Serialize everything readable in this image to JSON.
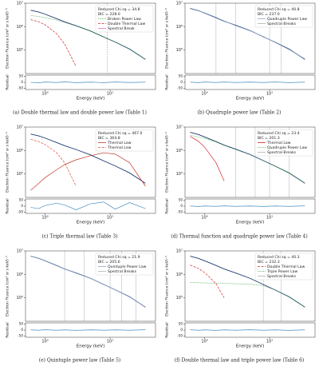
{
  "chart_data": [
    {
      "type": "line",
      "caption": "(a) Double thermal law and double power law (Table 1)",
      "annotations": [
        "Reduced Chi sq = 34.8",
        "BIC = 228.0"
      ],
      "xlabel": "Energy (keV)",
      "ylabel": "Electron Fluence (cm² sr s keV)⁻¹",
      "residual_label": "Residual",
      "log_x": true,
      "log_y": true,
      "x": [
        0.6,
        0.8,
        1,
        1.5,
        2,
        3,
        5,
        8,
        12,
        20,
        35
      ],
      "xlim": [
        0.5,
        50
      ],
      "xticks": [
        {
          "value": 1,
          "label": "10⁰"
        },
        {
          "value": 10,
          "label": "10¹"
        }
      ],
      "ylim": [
        10000,
        10000000
      ],
      "yticks": [
        {
          "value": 100000,
          "label": "10⁵"
        },
        {
          "value": 1000000,
          "label": "10⁶"
        },
        {
          "value": 10000000,
          "label": "10⁷"
        }
      ],
      "series": [
        {
          "color": "#1f3b73",
          "dash": "solid",
          "values": [
            5000000,
            4200000,
            3400000,
            2200000,
            1600000,
            1100000,
            650000,
            360000,
            220000,
            110000,
            40000
          ]
        },
        {
          "name": "Broken Power Law",
          "color": "#2ca02c",
          "dash": "dotted",
          "values": [
            3000000,
            2700000,
            2400000,
            1900000,
            1500000,
            1050000,
            650000,
            360000,
            220000,
            110000,
            40000
          ]
        },
        {
          "name": "Double Thermal Law",
          "color": "#d62728",
          "dash": "dashed",
          "values": [
            2000000,
            1600000,
            1200000,
            500000,
            180000,
            20000,
            null,
            null,
            null,
            null,
            null
          ]
        }
      ],
      "breaks": {
        "name": "Spectral Break",
        "color": "#e377c2",
        "values": [
          9
        ]
      },
      "residuals": {
        "color": "#1f77b4",
        "values": [
          0,
          -3,
          2,
          -1,
          3,
          -2,
          1,
          -2,
          2,
          -1,
          1
        ]
      },
      "residual_ylim": [
        -60,
        60
      ],
      "residual_yticks": [
        -50,
        0,
        50
      ]
    },
    {
      "type": "line",
      "caption": "(b) Quadruple power law (Table 2)",
      "annotations": [
        "Reduced Chi sq = 40.8",
        "BIC = 237.0"
      ],
      "xlabel": "Energy (keV)",
      "ylabel": "Electron Fluence (cm² sr s keV)⁻¹",
      "residual_label": "Residual",
      "log_x": true,
      "log_y": true,
      "x": [
        0.6,
        0.8,
        1,
        1.5,
        2,
        3,
        5,
        8,
        12,
        20,
        35
      ],
      "xlim": [
        0.5,
        50
      ],
      "xticks": [
        {
          "value": 1,
          "label": "10⁰"
        },
        {
          "value": 10,
          "label": "10¹"
        }
      ],
      "ylim": [
        10000,
        10000000
      ],
      "yticks": [
        {
          "value": 100000,
          "label": "10⁵"
        },
        {
          "value": 1000000,
          "label": "10⁶"
        },
        {
          "value": 10000000,
          "label": "10⁷"
        }
      ],
      "series": [
        {
          "color": "#1f3b73",
          "dash": "solid",
          "values": [
            6000000,
            4800000,
            3800000,
            2400000,
            1700000,
            1150000,
            680000,
            370000,
            220000,
            110000,
            40000
          ]
        },
        {
          "name": "Quadruple Power Law",
          "color": "#8fa6c9",
          "dash": "solid",
          "values": [
            5800000,
            4700000,
            3900000,
            2500000,
            1750000,
            1100000,
            660000,
            380000,
            215000,
            105000,
            42000
          ]
        }
      ],
      "breaks": {
        "name": "Spectral Breaks",
        "color": "#b0b0b0",
        "values": [
          1.5,
          3,
          10,
          15
        ]
      },
      "residuals": {
        "color": "#1f77b4",
        "values": [
          1,
          -2,
          2,
          -1,
          2,
          -1,
          1,
          -1,
          2,
          -2,
          1
        ]
      },
      "residual_ylim": [
        -60,
        60
      ],
      "residual_yticks": [
        -50,
        0,
        50
      ]
    },
    {
      "type": "line",
      "caption": "(c) Triple thermal law (Table 3)",
      "annotations": [
        "Reduced Chi sq = 467.0",
        "BIC = 364.8"
      ],
      "xlabel": "Energy (keV)",
      "ylabel": "Electron Fluence (cm² sr s keV)⁻¹",
      "residual_label": "Residual",
      "log_x": true,
      "log_y": true,
      "x": [
        0.6,
        0.8,
        1,
        1.5,
        2,
        3,
        5,
        8,
        12,
        20,
        35
      ],
      "xlim": [
        0.5,
        50
      ],
      "xticks": [
        {
          "value": 1,
          "label": "10⁰"
        },
        {
          "value": 10,
          "label": "10¹"
        }
      ],
      "ylim": [
        10000,
        10000000
      ],
      "yticks": [
        {
          "value": 100000,
          "label": "10⁵"
        },
        {
          "value": 1000000,
          "label": "10⁶"
        },
        {
          "value": 10000000,
          "label": "10⁷"
        }
      ],
      "series": [
        {
          "color": "#1f3b73",
          "dash": "solid",
          "values": [
            5000000,
            4200000,
            3400000,
            2200000,
            1600000,
            1100000,
            650000,
            360000,
            220000,
            110000,
            40000
          ]
        },
        {
          "name": "Thermal Law",
          "color": "#c0392b",
          "dash": "solid",
          "values": [
            20000,
            40000,
            70000,
            150000,
            250000,
            400000,
            600000,
            800000,
            700000,
            300000,
            30000
          ]
        },
        {
          "name": "Thermal Law",
          "color": "#e74c3c",
          "dash": "dashed",
          "values": [
            3000000,
            2400000,
            1800000,
            800000,
            300000,
            30000,
            null,
            null,
            null,
            null,
            null
          ]
        }
      ],
      "residuals": {
        "color": "#1f77b4",
        "values": [
          -10,
          -20,
          5,
          25,
          10,
          -30,
          20,
          35,
          -25,
          30,
          -20
        ]
      },
      "residual_ylim": [
        -60,
        60
      ],
      "residual_yticks": [
        -50,
        0,
        50
      ]
    },
    {
      "type": "line",
      "caption": "(d) Thermal function and quadruple power law (Table 4)",
      "annotations": [
        "Reduced Chi sq = 23.4",
        "BIC = 201.3"
      ],
      "xlabel": "Energy (keV)",
      "ylabel": "Electron Fluence (cm² sr s keV)⁻¹",
      "residual_label": "Residual",
      "log_x": true,
      "log_y": true,
      "x": [
        0.6,
        0.8,
        1,
        1.5,
        2,
        3,
        5,
        8,
        12,
        20,
        35
      ],
      "xlim": [
        0.5,
        50
      ],
      "xticks": [
        {
          "value": 1,
          "label": "10⁰"
        },
        {
          "value": 10,
          "label": "10¹"
        }
      ],
      "ylim": [
        10000,
        10000000
      ],
      "yticks": [
        {
          "value": 100000,
          "label": "10⁵"
        },
        {
          "value": 1000000,
          "label": "10⁶"
        },
        {
          "value": 10000000,
          "label": "10⁷"
        }
      ],
      "series": [
        {
          "color": "#1f3b73",
          "dash": "solid",
          "values": [
            6000000,
            4800000,
            3800000,
            2400000,
            1700000,
            1150000,
            680000,
            370000,
            220000,
            110000,
            40000
          ]
        },
        {
          "name": "Thermal Law",
          "color": "#d62728",
          "dash": "solid",
          "values": [
            4000000,
            2500000,
            1400000,
            300000,
            50000,
            null,
            null,
            null,
            null,
            null,
            null
          ]
        },
        {
          "name": "Quadruple Power Law",
          "color": "#2ca02c",
          "dash": "dotted",
          "values": [
            4500000,
            3800000,
            3300000,
            2300000,
            1650000,
            1100000,
            660000,
            370000,
            220000,
            110000,
            40000
          ]
        }
      ],
      "breaks": {
        "name": "Spectral Breaks",
        "color": "#b0b0b0",
        "values": [
          3,
          6,
          10,
          20
        ]
      },
      "residuals": {
        "color": "#1f77b4",
        "values": [
          1,
          -2,
          1,
          -1,
          2,
          -1,
          1,
          -2,
          1,
          -1,
          2
        ]
      },
      "residual_ylim": [
        -60,
        60
      ],
      "residual_yticks": [
        -50,
        0,
        50
      ]
    },
    {
      "type": "line",
      "caption": "(e) Quintuple power law (Table 5)",
      "annotations": [
        "Reduced Chi sq = 21.9",
        "BIC = 205.6"
      ],
      "xlabel": "Energy (keV)",
      "ylabel": "Electron Fluence (cm² sr s keV)⁻¹",
      "residual_label": "Residual",
      "log_x": true,
      "log_y": true,
      "x": [
        0.6,
        0.8,
        1,
        1.5,
        2,
        3,
        5,
        8,
        12,
        20,
        35
      ],
      "xlim": [
        0.5,
        50
      ],
      "xticks": [
        {
          "value": 1,
          "label": "10⁰"
        },
        {
          "value": 10,
          "label": "10¹"
        }
      ],
      "ylim": [
        10000,
        10000000
      ],
      "yticks": [
        {
          "value": 100000,
          "label": "10⁵"
        },
        {
          "value": 1000000,
          "label": "10⁶"
        },
        {
          "value": 10000000,
          "label": "10⁷"
        }
      ],
      "series": [
        {
          "color": "#1f3b73",
          "dash": "solid",
          "values": [
            6000000,
            4800000,
            3800000,
            2400000,
            1700000,
            1150000,
            680000,
            370000,
            220000,
            110000,
            40000
          ]
        },
        {
          "name": "Quintuple Power Law",
          "color": "#8fa6c9",
          "dash": "solid",
          "values": [
            5900000,
            4750000,
            3850000,
            2450000,
            1720000,
            1120000,
            670000,
            375000,
            218000,
            108000,
            41000
          ]
        }
      ],
      "breaks": {
        "name": "Spectral Breaks",
        "color": "#b0b0b0",
        "values": [
          2,
          4,
          10,
          15,
          25
        ]
      },
      "residuals": {
        "color": "#1f77b4",
        "values": [
          1,
          -1,
          2,
          -1,
          1,
          -2,
          1,
          -1,
          1,
          -1,
          2
        ]
      },
      "residual_ylim": [
        -60,
        60
      ],
      "residual_yticks": [
        -50,
        0,
        50
      ]
    },
    {
      "type": "line",
      "caption": "(f) Double thermal law and triple power law (Table 6)",
      "annotations": [
        "Reduced Chi sq = 40.3",
        "BIC = 232.3"
      ],
      "xlabel": "Energy (keV)",
      "ylabel": "Electron Fluence (cm² sr s keV)⁻¹",
      "residual_label": "Residual",
      "log_x": true,
      "log_y": true,
      "x": [
        0.6,
        0.8,
        1,
        1.5,
        2,
        3,
        5,
        8,
        12,
        20,
        35
      ],
      "xlim": [
        0.5,
        50
      ],
      "xticks": [
        {
          "value": 1,
          "label": "10⁰"
        },
        {
          "value": 10,
          "label": "10¹"
        }
      ],
      "ylim": [
        10000,
        10000000
      ],
      "yticks": [
        {
          "value": 100000,
          "label": "10⁵"
        },
        {
          "value": 1000000,
          "label": "10⁶"
        },
        {
          "value": 10000000,
          "label": "10⁷"
        }
      ],
      "series": [
        {
          "color": "#1f3b73",
          "dash": "solid",
          "values": [
            6000000,
            4800000,
            3800000,
            2400000,
            1700000,
            1150000,
            680000,
            370000,
            220000,
            110000,
            40000
          ]
        },
        {
          "name": "Double Thermal Law",
          "color": "#d62728",
          "dash": "dashed",
          "values": [
            2500000,
            1800000,
            1200000,
            400000,
            100000,
            null,
            null,
            null,
            null,
            null,
            null
          ]
        },
        {
          "name": "Triple Power Law",
          "color": "#2ca02c",
          "dash": "dotted",
          "values": [
            450000,
            440000,
            430000,
            420000,
            410000,
            400000,
            380000,
            330000,
            220000,
            110000,
            40000
          ]
        }
      ],
      "breaks": {
        "name": "Spectral Breaks",
        "color": "#b0b0b0",
        "values": [
          8,
          15
        ]
      },
      "residuals": {
        "color": "#1f77b4",
        "values": [
          2,
          -1,
          1,
          -2,
          1,
          -1,
          2,
          -1,
          1,
          -2,
          1
        ]
      },
      "residual_ylim": [
        -60,
        60
      ],
      "residual_yticks": [
        -50,
        0,
        50
      ]
    }
  ]
}
